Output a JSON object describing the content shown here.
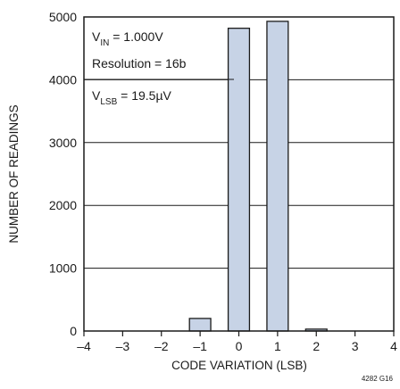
{
  "chart_data": {
    "type": "bar",
    "xlabel": "CODE VARIATION (LSB)",
    "ylabel": "NUMBER OF READINGS",
    "xlim": [
      -4,
      4
    ],
    "ylim": [
      0,
      5000
    ],
    "x_ticks": [
      "–4",
      "–3",
      "–2",
      "–1",
      "0",
      "1",
      "2",
      "3",
      "4"
    ],
    "y_ticks": [
      "0",
      "1000",
      "2000",
      "3000",
      "4000",
      "5000"
    ],
    "bars": [
      {
        "x": -1,
        "value": 200
      },
      {
        "x": 0,
        "value": 4820
      },
      {
        "x": 1,
        "value": 4930
      },
      {
        "x": 2,
        "value": 30
      }
    ],
    "bar_width": 0.55,
    "grid": true,
    "bar_color": "#c7d3e6",
    "bar_edge_color": "#1a1a1a",
    "annotations": {
      "vin": {
        "main": "V",
        "sub": "IN",
        "rest": " = 1.000V"
      },
      "resolution": "Resolution = 16b",
      "vlsb": {
        "main": "V",
        "sub": "LSB",
        "rest": " = 19.5µV"
      }
    },
    "figure_id": "4282 G16"
  }
}
